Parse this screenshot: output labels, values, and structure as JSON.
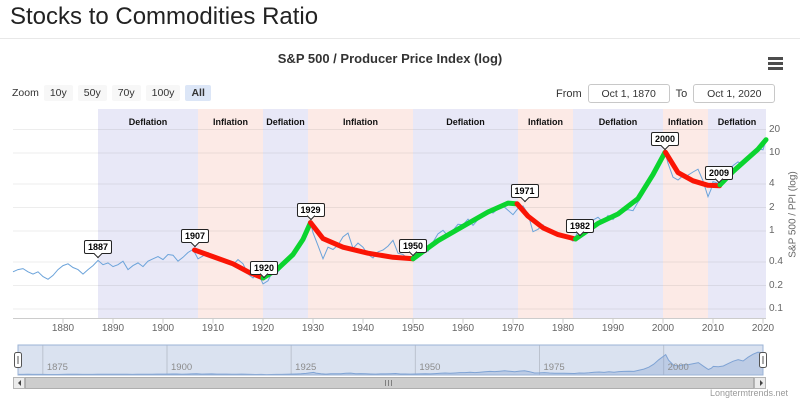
{
  "page": {
    "title": "Stocks to Commodities Ratio"
  },
  "chart": {
    "subtitle": "S&P 500 / Producer Price Index (log)",
    "watermark": "Longtermtrends.net"
  },
  "range_selector": {
    "zoom_label": "Zoom",
    "buttons": [
      {
        "label": "10y",
        "selected": false
      },
      {
        "label": "50y",
        "selected": false
      },
      {
        "label": "70y",
        "selected": false
      },
      {
        "label": "100y",
        "selected": false
      },
      {
        "label": "All",
        "selected": true
      }
    ],
    "from_label": "From",
    "from_value": "Oct 1, 1870",
    "to_label": "To",
    "to_value": "Oct 1, 2020"
  },
  "colors": {
    "line_blue": "#6ba3da",
    "trend_up": "#0bd42f",
    "trend_down": "#fa1505",
    "band_deflation": "#e8e8f7",
    "band_inflation": "#fceae6",
    "selected_zoom_bg": "#dce6f7",
    "navigator_fill": "rgba(108,140,195,0.25)",
    "navigator_line": "#7fa3d4"
  },
  "chart_data": {
    "type": "line",
    "title": "S&P 500 / Producer Price Index (log)",
    "y_axis_title": "S&P 500 / PPI (log)",
    "y_scale": "log",
    "x_range": [
      1870,
      2021
    ],
    "x_ticks": [
      1880,
      1890,
      1900,
      1910,
      1920,
      1930,
      1940,
      1950,
      1960,
      1970,
      1980,
      1990,
      2000,
      2010,
      2020
    ],
    "y_ticks": [
      20,
      10,
      4,
      2,
      1,
      0.4,
      0.2,
      0.1
    ],
    "bands": [
      {
        "label": "Deflation",
        "type": "deflation",
        "from": 1887,
        "to": 1907
      },
      {
        "label": "Inflation",
        "type": "inflation",
        "from": 1907,
        "to": 1920
      },
      {
        "label": "Deflation",
        "type": "deflation",
        "from": 1920,
        "to": 1929
      },
      {
        "label": "Inflation",
        "type": "inflation",
        "from": 1929,
        "to": 1950
      },
      {
        "label": "Deflation",
        "type": "deflation",
        "from": 1950,
        "to": 1971
      },
      {
        "label": "Inflation",
        "type": "inflation",
        "from": 1971,
        "to": 1982
      },
      {
        "label": "Deflation",
        "type": "deflation",
        "from": 1982,
        "to": 2000
      },
      {
        "label": "Inflation",
        "type": "inflation",
        "from": 2000,
        "to": 2009
      },
      {
        "label": "Deflation",
        "type": "deflation",
        "from": 2009,
        "to": 2020.6
      }
    ],
    "annotations": [
      {
        "label": "1887",
        "year": 1887,
        "value": 0.42
      },
      {
        "label": "1907",
        "year": 1906.4,
        "value": 0.58
      },
      {
        "label": "1920",
        "year": 1920.2,
        "value": 0.23
      },
      {
        "label": "1929",
        "year": 1929.5,
        "value": 1.28
      },
      {
        "label": "1950",
        "year": 1950,
        "value": 0.44
      },
      {
        "label": "1971",
        "year": 1971.5,
        "value": 2.2,
        "dx": 4
      },
      {
        "label": "1982",
        "year": 1982.8,
        "value": 0.8,
        "dx": 3
      },
      {
        "label": "2000",
        "year": 2000.4,
        "value": 10.2
      },
      {
        "label": "2009",
        "year": 2011.2,
        "value": 3.8
      }
    ],
    "series": {
      "name": "S&P 500 / PPI",
      "points": [
        [
          1870,
          0.3
        ],
        [
          1871,
          0.32
        ],
        [
          1872,
          0.33
        ],
        [
          1873,
          0.3
        ],
        [
          1874,
          0.28
        ],
        [
          1875,
          0.3
        ],
        [
          1876,
          0.26
        ],
        [
          1877,
          0.24
        ],
        [
          1878,
          0.27
        ],
        [
          1879,
          0.32
        ],
        [
          1880,
          0.36
        ],
        [
          1881,
          0.38
        ],
        [
          1882,
          0.34
        ],
        [
          1883,
          0.32
        ],
        [
          1884,
          0.28
        ],
        [
          1885,
          0.32
        ],
        [
          1886,
          0.36
        ],
        [
          1887,
          0.42
        ],
        [
          1888,
          0.37
        ],
        [
          1889,
          0.39
        ],
        [
          1890,
          0.35
        ],
        [
          1891,
          0.37
        ],
        [
          1892,
          0.41
        ],
        [
          1893,
          0.32
        ],
        [
          1894,
          0.36
        ],
        [
          1895,
          0.39
        ],
        [
          1896,
          0.35
        ],
        [
          1897,
          0.41
        ],
        [
          1898,
          0.44
        ],
        [
          1899,
          0.47
        ],
        [
          1900,
          0.43
        ],
        [
          1901,
          0.5
        ],
        [
          1902,
          0.49
        ],
        [
          1903,
          0.41
        ],
        [
          1904,
          0.46
        ],
        [
          1905,
          0.53
        ],
        [
          1906,
          0.58
        ],
        [
          1907,
          0.44
        ],
        [
          1908,
          0.48
        ],
        [
          1909,
          0.53
        ],
        [
          1910,
          0.47
        ],
        [
          1911,
          0.46
        ],
        [
          1912,
          0.44
        ],
        [
          1913,
          0.39
        ],
        [
          1914,
          0.37
        ],
        [
          1915,
          0.43
        ],
        [
          1916,
          0.38
        ],
        [
          1917,
          0.28
        ],
        [
          1918,
          0.25
        ],
        [
          1919,
          0.29
        ],
        [
          1920,
          0.21
        ],
        [
          1921,
          0.23
        ],
        [
          1922,
          0.31
        ],
        [
          1923,
          0.3
        ],
        [
          1924,
          0.36
        ],
        [
          1925,
          0.43
        ],
        [
          1926,
          0.48
        ],
        [
          1927,
          0.6
        ],
        [
          1928,
          0.82
        ],
        [
          1929.5,
          1.28
        ],
        [
          1930,
          0.95
        ],
        [
          1931,
          0.65
        ],
        [
          1932,
          0.44
        ],
        [
          1933,
          0.62
        ],
        [
          1934,
          0.58
        ],
        [
          1935,
          0.66
        ],
        [
          1936,
          0.84
        ],
        [
          1937,
          0.94
        ],
        [
          1938,
          0.6
        ],
        [
          1939,
          0.7
        ],
        [
          1940,
          0.62
        ],
        [
          1941,
          0.5
        ],
        [
          1942,
          0.45
        ],
        [
          1943,
          0.54
        ],
        [
          1944,
          0.57
        ],
        [
          1945,
          0.64
        ],
        [
          1946,
          0.76
        ],
        [
          1947,
          0.52
        ],
        [
          1948,
          0.5
        ],
        [
          1949,
          0.44
        ],
        [
          1950,
          0.48
        ],
        [
          1951,
          0.54
        ],
        [
          1952,
          0.58
        ],
        [
          1953,
          0.55
        ],
        [
          1954,
          0.72
        ],
        [
          1955,
          0.92
        ],
        [
          1956,
          1.02
        ],
        [
          1957,
          0.86
        ],
        [
          1958,
          1.02
        ],
        [
          1959,
          1.22
        ],
        [
          1960,
          1.2
        ],
        [
          1961,
          1.42
        ],
        [
          1962,
          1.18
        ],
        [
          1963,
          1.4
        ],
        [
          1964,
          1.62
        ],
        [
          1965,
          1.82
        ],
        [
          1966,
          1.7
        ],
        [
          1967,
          1.92
        ],
        [
          1968,
          2.1
        ],
        [
          1969,
          1.85
        ],
        [
          1970,
          1.62
        ],
        [
          1971,
          1.95
        ],
        [
          1972,
          2.1
        ],
        [
          1973,
          1.65
        ],
        [
          1974,
          0.98
        ],
        [
          1975,
          1.05
        ],
        [
          1976,
          1.2
        ],
        [
          1977,
          1.0
        ],
        [
          1978,
          0.92
        ],
        [
          1979,
          0.88
        ],
        [
          1980,
          0.86
        ],
        [
          1981,
          0.82
        ],
        [
          1982,
          0.74
        ],
        [
          1983,
          0.98
        ],
        [
          1984,
          0.96
        ],
        [
          1985,
          1.12
        ],
        [
          1986,
          1.38
        ],
        [
          1987,
          1.5
        ],
        [
          1988,
          1.3
        ],
        [
          1989,
          1.58
        ],
        [
          1990,
          1.4
        ],
        [
          1991,
          1.68
        ],
        [
          1992,
          1.78
        ],
        [
          1993,
          1.88
        ],
        [
          1994,
          1.82
        ],
        [
          1995,
          2.35
        ],
        [
          1996,
          2.95
        ],
        [
          1997,
          3.9
        ],
        [
          1998,
          5.4
        ],
        [
          1999,
          7.6
        ],
        [
          2000.4,
          10.2
        ],
        [
          2001,
          7.4
        ],
        [
          2002,
          4.9
        ],
        [
          2003,
          4.5
        ],
        [
          2004,
          5.1
        ],
        [
          2005,
          5.2
        ],
        [
          2006,
          5.7
        ],
        [
          2007,
          6.2
        ],
        [
          2008,
          4.4
        ],
        [
          2009,
          2.75
        ],
        [
          2009.6,
          3.4
        ],
        [
          2010,
          4.3
        ],
        [
          2011,
          4.1
        ],
        [
          2012,
          4.5
        ],
        [
          2013,
          5.7
        ],
        [
          2014,
          6.9
        ],
        [
          2015,
          7.7
        ],
        [
          2016,
          7.0
        ],
        [
          2017,
          8.9
        ],
        [
          2018,
          10.4
        ],
        [
          2019,
          11.4
        ],
        [
          2020,
          11.0
        ],
        [
          2020.8,
          14.8
        ]
      ]
    },
    "trends": [
      {
        "direction": "down",
        "points": [
          [
            1906.3,
            0.57
          ],
          [
            1910,
            0.47
          ],
          [
            1914,
            0.38
          ],
          [
            1917,
            0.3
          ],
          [
            1920,
            0.25
          ]
        ]
      },
      {
        "direction": "up",
        "points": [
          [
            1920,
            0.25
          ],
          [
            1923,
            0.33
          ],
          [
            1926,
            0.5
          ],
          [
            1928,
            0.78
          ],
          [
            1929.5,
            1.28
          ]
        ]
      },
      {
        "direction": "down",
        "points": [
          [
            1929.5,
            1.28
          ],
          [
            1932,
            0.8
          ],
          [
            1936,
            0.62
          ],
          [
            1941,
            0.52
          ],
          [
            1946,
            0.46
          ],
          [
            1950,
            0.44
          ]
        ]
      },
      {
        "direction": "up",
        "points": [
          [
            1950,
            0.44
          ],
          [
            1955,
            0.75
          ],
          [
            1960,
            1.15
          ],
          [
            1965,
            1.75
          ],
          [
            1969,
            2.28
          ],
          [
            1970.5,
            2.24
          ]
        ]
      },
      {
        "direction": "down",
        "points": [
          [
            1970.8,
            2.24
          ],
          [
            1973,
            1.55
          ],
          [
            1976,
            1.1
          ],
          [
            1979,
            0.9
          ],
          [
            1982.5,
            0.79
          ]
        ]
      },
      {
        "direction": "up",
        "points": [
          [
            1982.5,
            0.79
          ],
          [
            1987,
            1.25
          ],
          [
            1991,
            1.65
          ],
          [
            1995,
            2.6
          ],
          [
            1998,
            5.3
          ],
          [
            2000.4,
            10.2
          ]
        ]
      },
      {
        "direction": "down",
        "points": [
          [
            2000.5,
            10.2
          ],
          [
            2003,
            5.6
          ],
          [
            2006,
            4.4
          ],
          [
            2009,
            3.85
          ],
          [
            2011.3,
            3.8
          ]
        ]
      },
      {
        "direction": "up",
        "points": [
          [
            2011.4,
            3.9
          ],
          [
            2014,
            5.8
          ],
          [
            2017,
            8.6
          ],
          [
            2019,
            11.2
          ],
          [
            2020.8,
            14.8
          ]
        ]
      }
    ],
    "navigator": {
      "x_ticks": [
        1875,
        1900,
        1925,
        1950,
        1975,
        2000
      ]
    }
  }
}
